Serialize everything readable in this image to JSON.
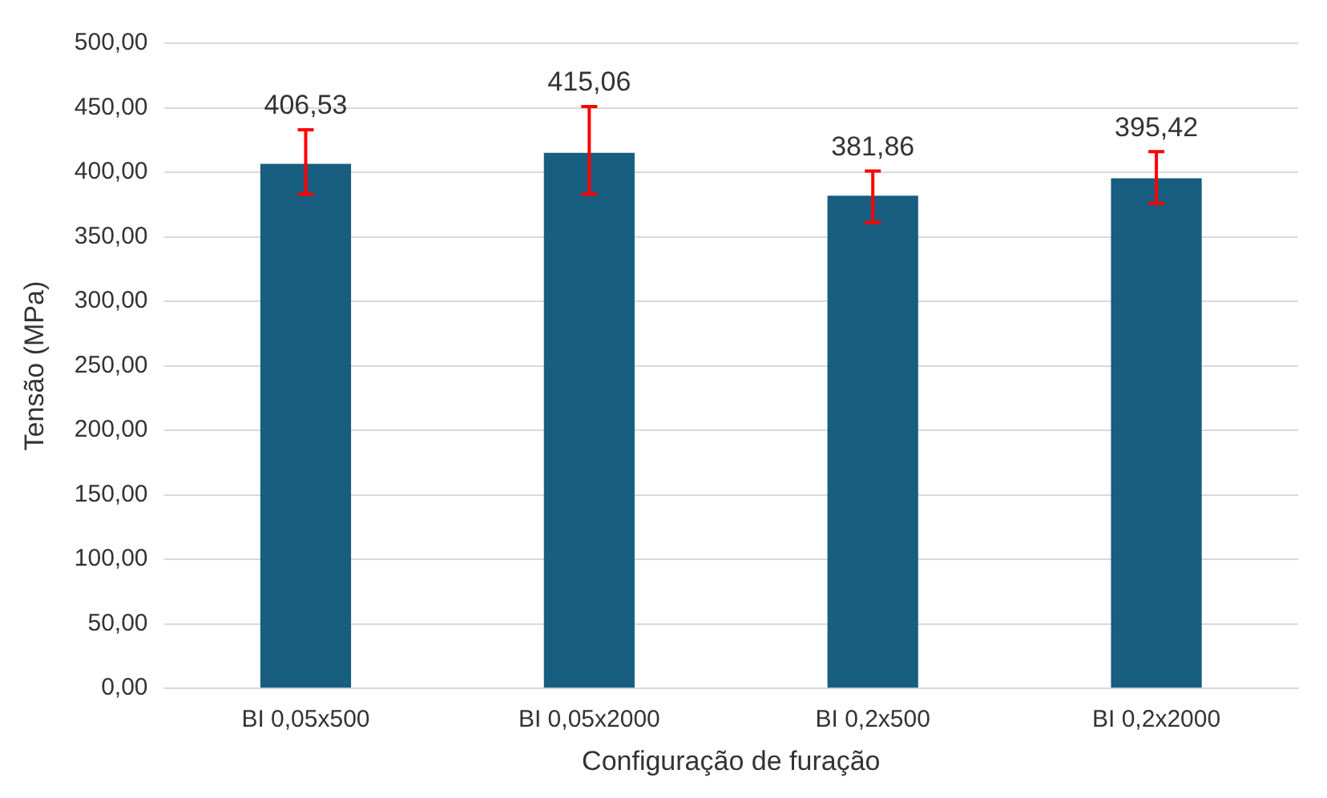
{
  "chart_data": {
    "type": "bar",
    "xlabel": "Configuração de furação",
    "ylabel": "Tensão (MPa)",
    "categories": [
      "BI 0,05x500",
      "BI 0,05x2000",
      "BI 0,2x500",
      "BI 0,2x2000"
    ],
    "values": [
      406.53,
      415.06,
      381.86,
      395.42
    ],
    "value_labels": [
      "406,53",
      "415,06",
      "381,86",
      "395,42"
    ],
    "errors": [
      [
        383,
        433
      ],
      [
        383,
        451
      ],
      [
        361,
        401
      ],
      [
        376,
        416
      ]
    ],
    "color": "#185e80",
    "ylim": [
      0,
      500
    ],
    "yticks": [
      {
        "value": 0,
        "label": "0,00"
      },
      {
        "value": 50,
        "label": "50,00"
      },
      {
        "value": 100,
        "label": "100,00"
      },
      {
        "value": 150,
        "label": "150,00"
      },
      {
        "value": 200,
        "label": "200,00"
      },
      {
        "value": 250,
        "label": "250,00"
      },
      {
        "value": 300,
        "label": "300,00"
      },
      {
        "value": 350,
        "label": "350,00"
      },
      {
        "value": 400,
        "label": "400,00"
      },
      {
        "value": 450,
        "label": "450,00"
      },
      {
        "value": 500,
        "label": "500,00"
      }
    ],
    "grid": "y",
    "legend": false
  }
}
